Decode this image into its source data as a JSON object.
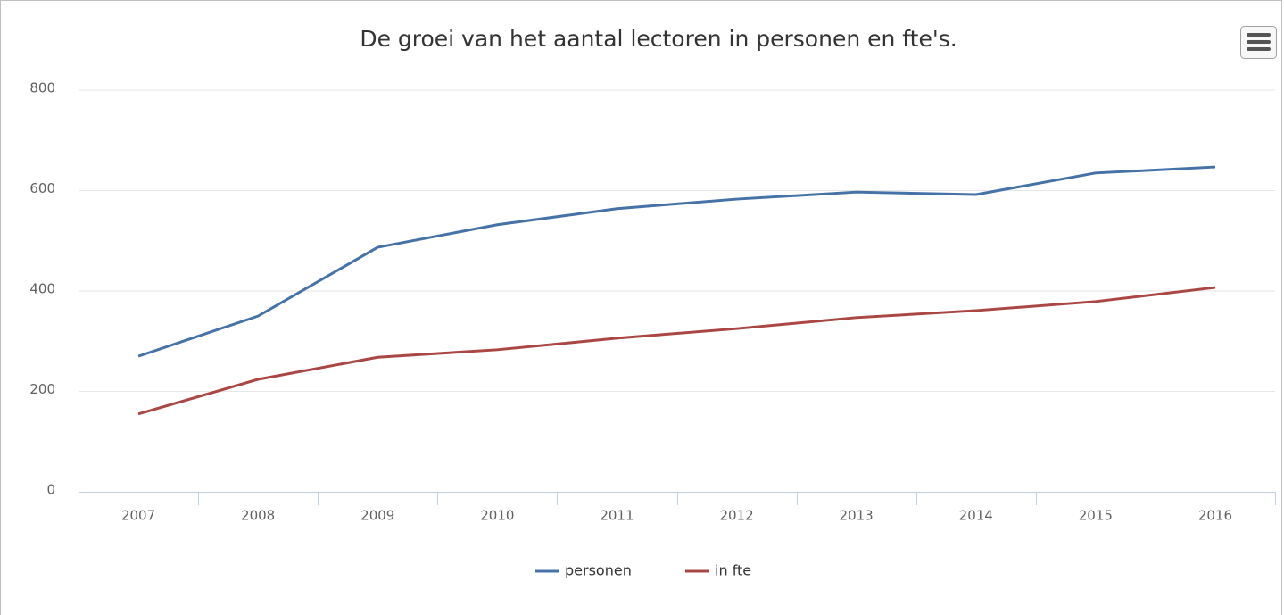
{
  "chart_data": {
    "type": "line",
    "title": "De groei van het aantal lectoren in personen en fte's.",
    "categories": [
      "2007",
      "2008",
      "2009",
      "2010",
      "2011",
      "2012",
      "2013",
      "2014",
      "2015",
      "2016"
    ],
    "series": [
      {
        "name": "personen",
        "color": "#4572a7",
        "values": [
          270,
          350,
          487,
          532,
          564,
          583,
          597,
          592,
          635,
          647
        ]
      },
      {
        "name": "in fte",
        "color": "#aa4643",
        "values": [
          155,
          224,
          268,
          283,
          306,
          325,
          347,
          361,
          379,
          407
        ]
      }
    ],
    "ylim": [
      0,
      800
    ],
    "yticks": [
      0,
      200,
      400,
      600,
      800
    ],
    "grid": true,
    "legend": "bottom"
  }
}
